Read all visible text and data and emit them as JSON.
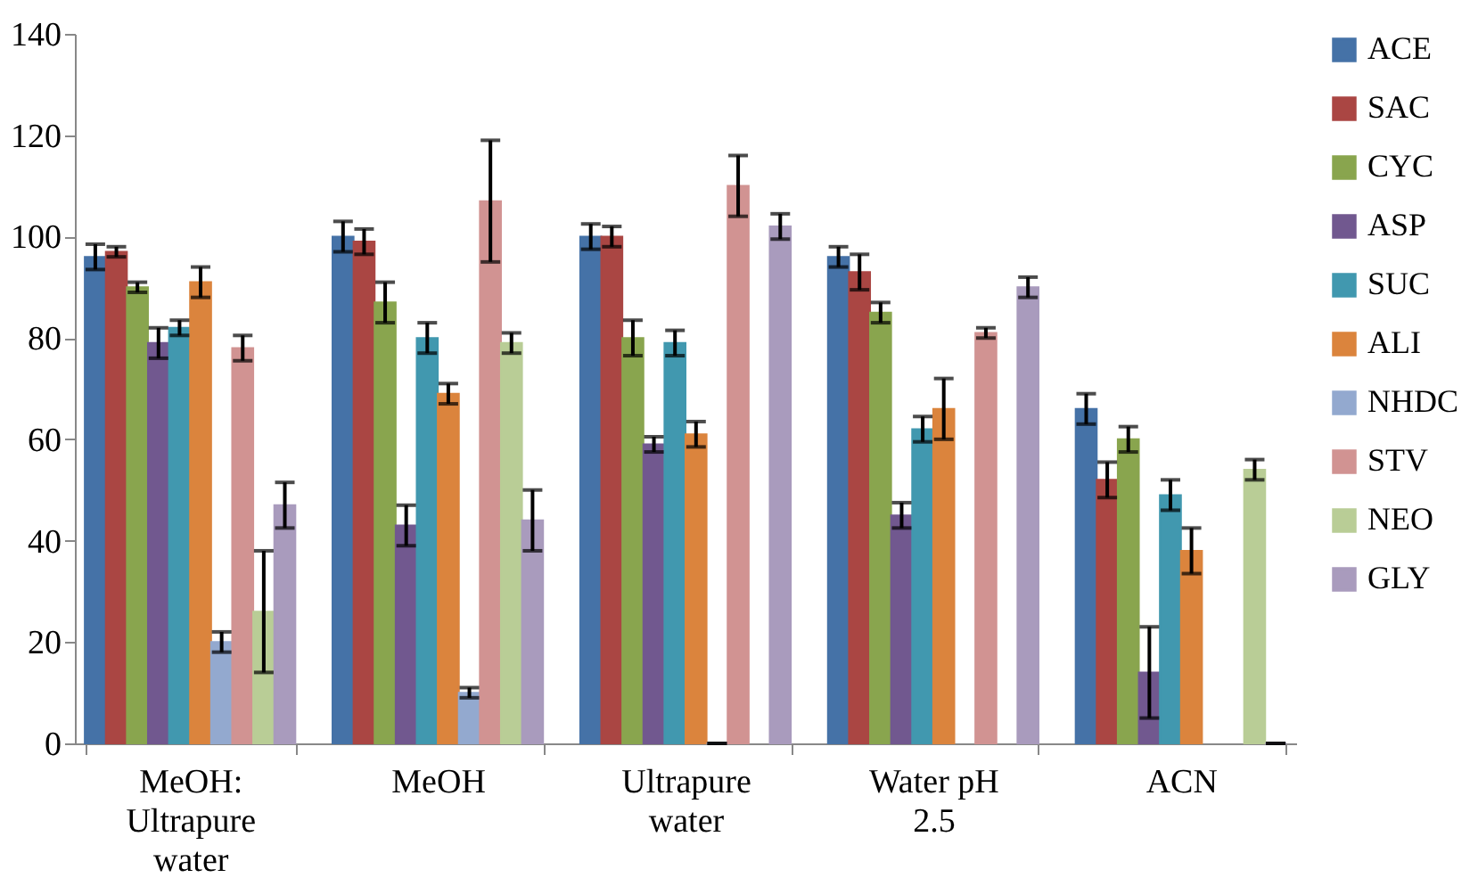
{
  "chart_data": {
    "type": "bar",
    "categories": [
      "MeOH: Ultrapure water",
      "MeOH",
      "Ultrapure water",
      "Water pH 2.5",
      "ACN"
    ],
    "series": [
      {
        "name": "ACE",
        "color": "#4572a7",
        "values": [
          96,
          100,
          100,
          96,
          66
        ],
        "errors": [
          2.5,
          3,
          2.5,
          2,
          3
        ]
      },
      {
        "name": "SAC",
        "color": "#aa4643",
        "values": [
          97,
          99,
          100,
          93,
          52
        ],
        "errors": [
          1,
          2.5,
          2,
          3.5,
          3.5
        ]
      },
      {
        "name": "CYC",
        "color": "#89a54e",
        "values": [
          90,
          87,
          80,
          85,
          60
        ],
        "errors": [
          1,
          4,
          3.5,
          2,
          2.5
        ]
      },
      {
        "name": "ASP",
        "color": "#71588f",
        "values": [
          79,
          43,
          59,
          45,
          14
        ],
        "errors": [
          3,
          4,
          1.5,
          2.5,
          9
        ]
      },
      {
        "name": "SUC",
        "color": "#4198af",
        "values": [
          82,
          80,
          79,
          62,
          49
        ],
        "errors": [
          1.5,
          3,
          2.5,
          2.5,
          3
        ]
      },
      {
        "name": "ALI",
        "color": "#db843d",
        "values": [
          91,
          69,
          61,
          66,
          38
        ],
        "errors": [
          3,
          2,
          2.5,
          6,
          4.5
        ]
      },
      {
        "name": "NHDC",
        "color": "#93a9cf",
        "values": [
          20,
          10,
          0,
          null,
          null
        ],
        "errors": [
          2,
          1,
          0,
          null,
          null
        ]
      },
      {
        "name": "STV",
        "color": "#d19392",
        "values": [
          78,
          107,
          110,
          81,
          null
        ],
        "errors": [
          2.5,
          12,
          6,
          1,
          null
        ]
      },
      {
        "name": "NEO",
        "color": "#b9cd96",
        "values": [
          26,
          79,
          null,
          null,
          54
        ],
        "errors": [
          12,
          2,
          null,
          null,
          2
        ]
      },
      {
        "name": "GLY",
        "color": "#a99bbd",
        "values": [
          47,
          44,
          102,
          90,
          0
        ],
        "errors": [
          4.5,
          6,
          2.5,
          2,
          0
        ]
      }
    ],
    "ylim": [
      0,
      140
    ],
    "yticks": [
      0,
      20,
      40,
      60,
      80,
      100,
      120,
      140
    ],
    "grid": false,
    "legend": "right"
  }
}
